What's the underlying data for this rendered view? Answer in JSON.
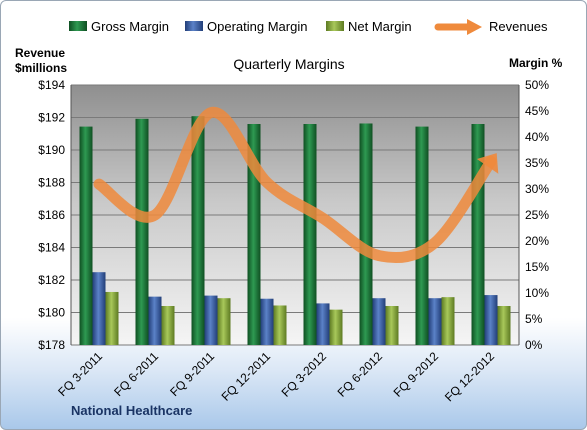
{
  "chart_data": {
    "type": "bar",
    "title": "Quarterly Margins",
    "company": "National Healthcare",
    "categories": [
      "FQ 3-2011",
      "FQ 6-2011",
      "FQ 9-2011",
      "FQ 12-2011",
      "FQ 3-2012",
      "FQ 6-2012",
      "FQ 9-2012",
      "FQ 12-2012"
    ],
    "series": [
      {
        "name": "Gross Margin",
        "axis": "right",
        "kind": "bar",
        "color": "#1d7a3a",
        "values": [
          42.0,
          43.5,
          44.0,
          42.5,
          42.5,
          42.6,
          42.0,
          42.5
        ]
      },
      {
        "name": "Operating Margin",
        "axis": "right",
        "kind": "bar",
        "color": "#3a5ea8",
        "values": [
          14.0,
          9.3,
          9.5,
          8.9,
          8.0,
          9.0,
          9.0,
          9.6
        ]
      },
      {
        "name": "Net Margin",
        "axis": "right",
        "kind": "bar",
        "color": "#86a83a",
        "values": [
          10.2,
          7.5,
          9.0,
          7.6,
          6.8,
          7.5,
          9.2,
          7.5
        ]
      },
      {
        "name": "Revenues",
        "axis": "left",
        "kind": "line",
        "color": "#ef8a3c",
        "values": [
          187.9,
          186.0,
          192.3,
          188.0,
          185.8,
          183.5,
          184.3,
          189.3
        ]
      }
    ],
    "left_axis": {
      "label_line1": "Revenue",
      "label_line2": "$millions",
      "min": 178,
      "max": 194,
      "step": 2,
      "prefix": "$"
    },
    "right_axis": {
      "label": "Margin %",
      "min": 0,
      "max": 50,
      "step": 5,
      "suffix": "%"
    },
    "legend_position": "top",
    "grid": true,
    "plot_background": "#c8c8c8"
  }
}
